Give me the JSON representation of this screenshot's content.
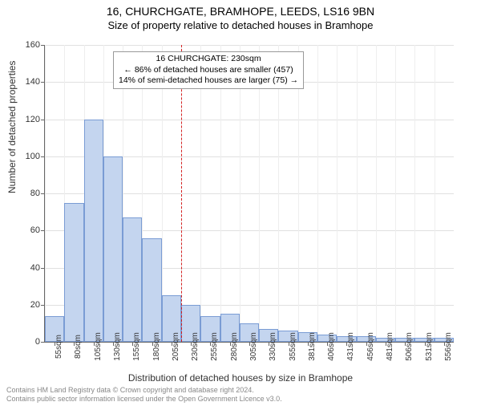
{
  "header": {
    "address": "16, CHURCHGATE, BRAMHOPE, LEEDS, LS16 9BN",
    "subtitle": "Size of property relative to detached houses in Bramhope"
  },
  "chart": {
    "type": "histogram",
    "x_categories": [
      "55sqm",
      "80sqm",
      "105sqm",
      "130sqm",
      "155sqm",
      "180sqm",
      "205sqm",
      "230sqm",
      "255sqm",
      "280sqm",
      "305sqm",
      "330sqm",
      "355sqm",
      "381sqm",
      "406sqm",
      "431sqm",
      "456sqm",
      "481sqm",
      "506sqm",
      "531sqm",
      "556sqm"
    ],
    "bar_values": [
      14,
      75,
      120,
      100,
      67,
      56,
      25,
      20,
      14,
      15,
      10,
      7,
      6,
      5,
      4,
      3,
      3,
      2,
      2,
      2,
      2
    ],
    "bar_fill": "#c4d5ef",
    "bar_border": "#7a9cd4",
    "ylim": [
      0,
      160
    ],
    "ytick_step": 20,
    "y_ticks": [
      0,
      20,
      40,
      60,
      80,
      100,
      120,
      140,
      160
    ],
    "reference_x_index": 7,
    "reference_color": "#d62020",
    "background": "#ffffff",
    "grid_color": "#e0e0e0",
    "minor_grid_color": "#eeeeee",
    "ylabel": "Number of detached properties",
    "xlabel": "Distribution of detached houses by size in Bramhope",
    "label_fontsize": 12,
    "tick_fontsize": 11,
    "bar_width_ratio": 1.0
  },
  "annotation": {
    "line1": "16 CHURCHGATE: 230sqm",
    "line2": "← 86% of detached houses are smaller (457)",
    "line3": "14% of semi-detached houses are larger (75) →"
  },
  "footer": {
    "line1": "Contains HM Land Registry data © Crown copyright and database right 2024.",
    "line2": "Contains public sector information licensed under the Open Government Licence v3.0."
  }
}
